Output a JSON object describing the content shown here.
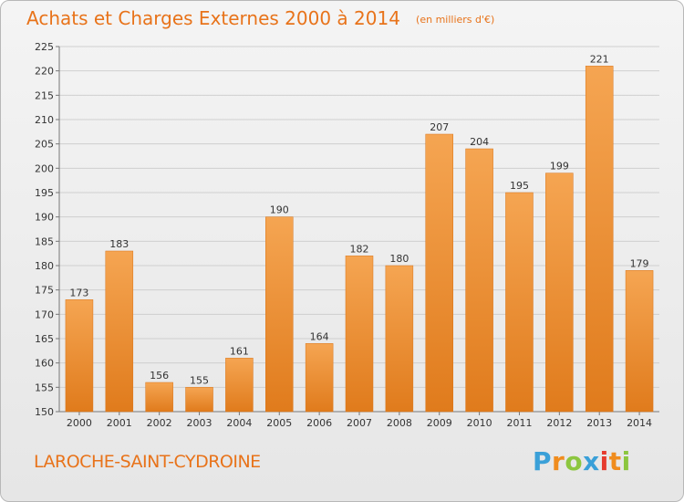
{
  "header": {
    "title": "Achats et Charges Externes 2000 à 2014",
    "unit": "(en milliers d'€)"
  },
  "footer": {
    "commune": "LAROCHE-SAINT-CYDROINE",
    "logo_letters": [
      "P",
      "r",
      "o",
      "x",
      "i",
      "t",
      "i"
    ]
  },
  "colors": {
    "title": "#e8731a",
    "bar_top": "#f5a552",
    "bar_bottom": "#e07b1c",
    "logo": [
      "#3aa0d8",
      "#f08c1e",
      "#8cc63f",
      "#3aa0d8",
      "#e63b2e",
      "#f08c1e",
      "#8cc63f"
    ]
  },
  "chart_data": {
    "type": "bar",
    "title": "Achats et Charges Externes 2000 à 2014",
    "categories": [
      "2000",
      "2001",
      "2002",
      "2003",
      "2004",
      "2005",
      "2006",
      "2007",
      "2008",
      "2009",
      "2010",
      "2011",
      "2012",
      "2013",
      "2014"
    ],
    "values": [
      173,
      183,
      156,
      155,
      161,
      190,
      164,
      182,
      180,
      207,
      204,
      195,
      199,
      221,
      179
    ],
    "ylim": [
      150,
      225
    ],
    "yticks": [
      150,
      155,
      160,
      165,
      170,
      175,
      180,
      185,
      190,
      195,
      200,
      205,
      210,
      215,
      220,
      225
    ],
    "grid": true
  }
}
